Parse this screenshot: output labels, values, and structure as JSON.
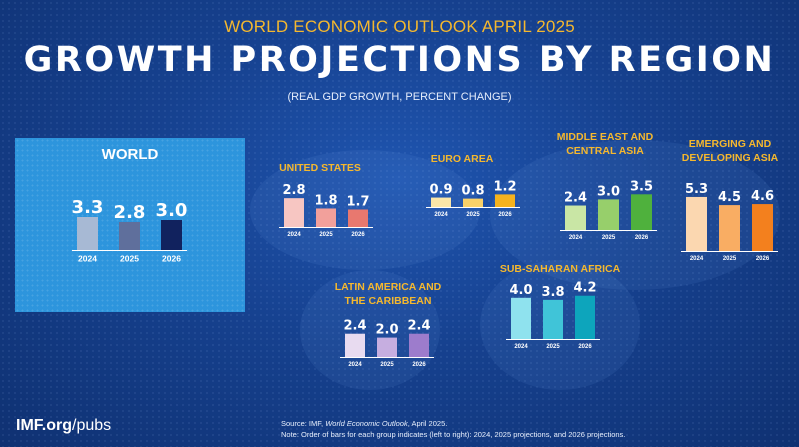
{
  "header": {
    "supertitle": "WORLD ECONOMIC OUTLOOK APRIL 2025",
    "title": "GROWTH PROJECTIONS BY REGION",
    "subtitle": "(REAL GDP GROWTH, PERCENT CHANGE)"
  },
  "footer": {
    "brand_bold": "IMF.org",
    "brand_rest": "/pubs",
    "source_prefix": "Source: IMF, ",
    "source_italic": "World Economic Outlook",
    "source_suffix": ", April 2025.",
    "note": "Note:  Order of bars for each group indicates (left to right): 2024, 2025 projections, and 2026 projections."
  },
  "chart_data": [
    {
      "type": "bar",
      "title": "WORLD",
      "categories": [
        "2024",
        "2025",
        "2026"
      ],
      "values": [
        3.3,
        2.8,
        3.0
      ],
      "colors": [
        "#a7b9d4",
        "#5f6f9c",
        "#11225e"
      ]
    },
    {
      "type": "bar",
      "title": "UNITED STATES",
      "categories": [
        "2024",
        "2025",
        "2026"
      ],
      "values": [
        2.8,
        1.8,
        1.7
      ],
      "colors": [
        "#f7c6c2",
        "#f2a09b",
        "#e8786f"
      ]
    },
    {
      "type": "bar",
      "title": "EURO AREA",
      "categories": [
        "2024",
        "2025",
        "2026"
      ],
      "values": [
        0.9,
        0.8,
        1.2
      ],
      "colors": [
        "#fbe6a8",
        "#f9d169",
        "#f5b21d"
      ]
    },
    {
      "type": "bar",
      "title": "MIDDLE EAST AND\nCENTRAL ASIA",
      "categories": [
        "2024",
        "2025",
        "2026"
      ],
      "values": [
        2.4,
        3.0,
        3.5
      ],
      "colors": [
        "#c9e6a5",
        "#97cf6b",
        "#4fb13d"
      ]
    },
    {
      "type": "bar",
      "title": "EMERGING AND\nDEVELOPING ASIA",
      "categories": [
        "2024",
        "2025",
        "2026"
      ],
      "values": [
        5.3,
        4.5,
        4.6
      ],
      "colors": [
        "#fbd7b0",
        "#f9ad63",
        "#f3801e"
      ]
    },
    {
      "type": "bar",
      "title": "LATIN AMERICA AND\nTHE CARIBBEAN",
      "categories": [
        "2024",
        "2025",
        "2026"
      ],
      "values": [
        2.4,
        2.0,
        2.4
      ],
      "colors": [
        "#e8dbf0",
        "#c6aee0",
        "#9d7ccc"
      ]
    },
    {
      "type": "bar",
      "title": "SUB-SAHARAN AFRICA",
      "categories": [
        "2024",
        "2025",
        "2026"
      ],
      "values": [
        4.0,
        3.8,
        4.2
      ],
      "colors": [
        "#8fe2ee",
        "#40c4d8",
        "#0da5bc"
      ]
    }
  ]
}
